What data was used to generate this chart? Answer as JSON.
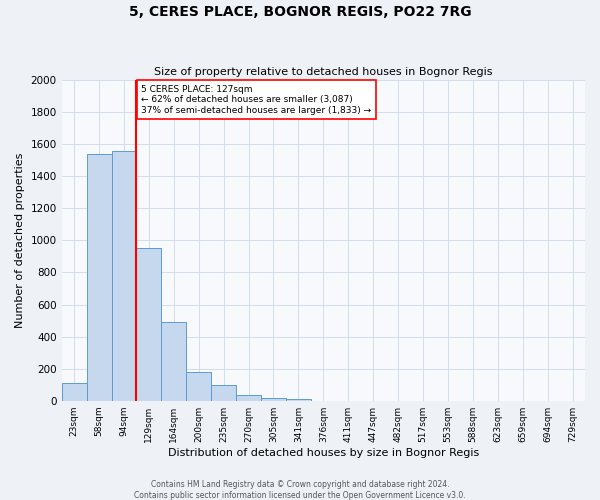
{
  "title": "5, CERES PLACE, BOGNOR REGIS, PO22 7RG",
  "subtitle": "Size of property relative to detached houses in Bognor Regis",
  "xlabel": "Distribution of detached houses by size in Bognor Regis",
  "ylabel": "Number of detached properties",
  "bar_labels": [
    "23sqm",
    "58sqm",
    "94sqm",
    "129sqm",
    "164sqm",
    "200sqm",
    "235sqm",
    "270sqm",
    "305sqm",
    "341sqm",
    "376sqm",
    "411sqm",
    "447sqm",
    "482sqm",
    "517sqm",
    "553sqm",
    "588sqm",
    "623sqm",
    "659sqm",
    "694sqm",
    "729sqm"
  ],
  "bar_values": [
    110,
    1540,
    1560,
    950,
    490,
    180,
    95,
    35,
    20,
    8,
    0,
    0,
    0,
    0,
    0,
    0,
    0,
    0,
    0,
    0,
    0
  ],
  "bar_color": "#c5d8ed",
  "bar_edge_color": "#5b9bd5",
  "vline_color": "red",
  "annotation_text": "5 CERES PLACE: 127sqm\n← 62% of detached houses are smaller (3,087)\n37% of semi-detached houses are larger (1,833) →",
  "annotation_box_color": "white",
  "annotation_box_edge_color": "red",
  "ylim": [
    0,
    2000
  ],
  "yticks": [
    0,
    200,
    400,
    600,
    800,
    1000,
    1200,
    1400,
    1600,
    1800,
    2000
  ],
  "footer_line1": "Contains HM Land Registry data © Crown copyright and database right 2024.",
  "footer_line2": "Contains public sector information licensed under the Open Government Licence v3.0.",
  "background_color": "#eef2f7",
  "plot_background_color": "#f7f9fc",
  "grid_color": "#ccd8e8"
}
